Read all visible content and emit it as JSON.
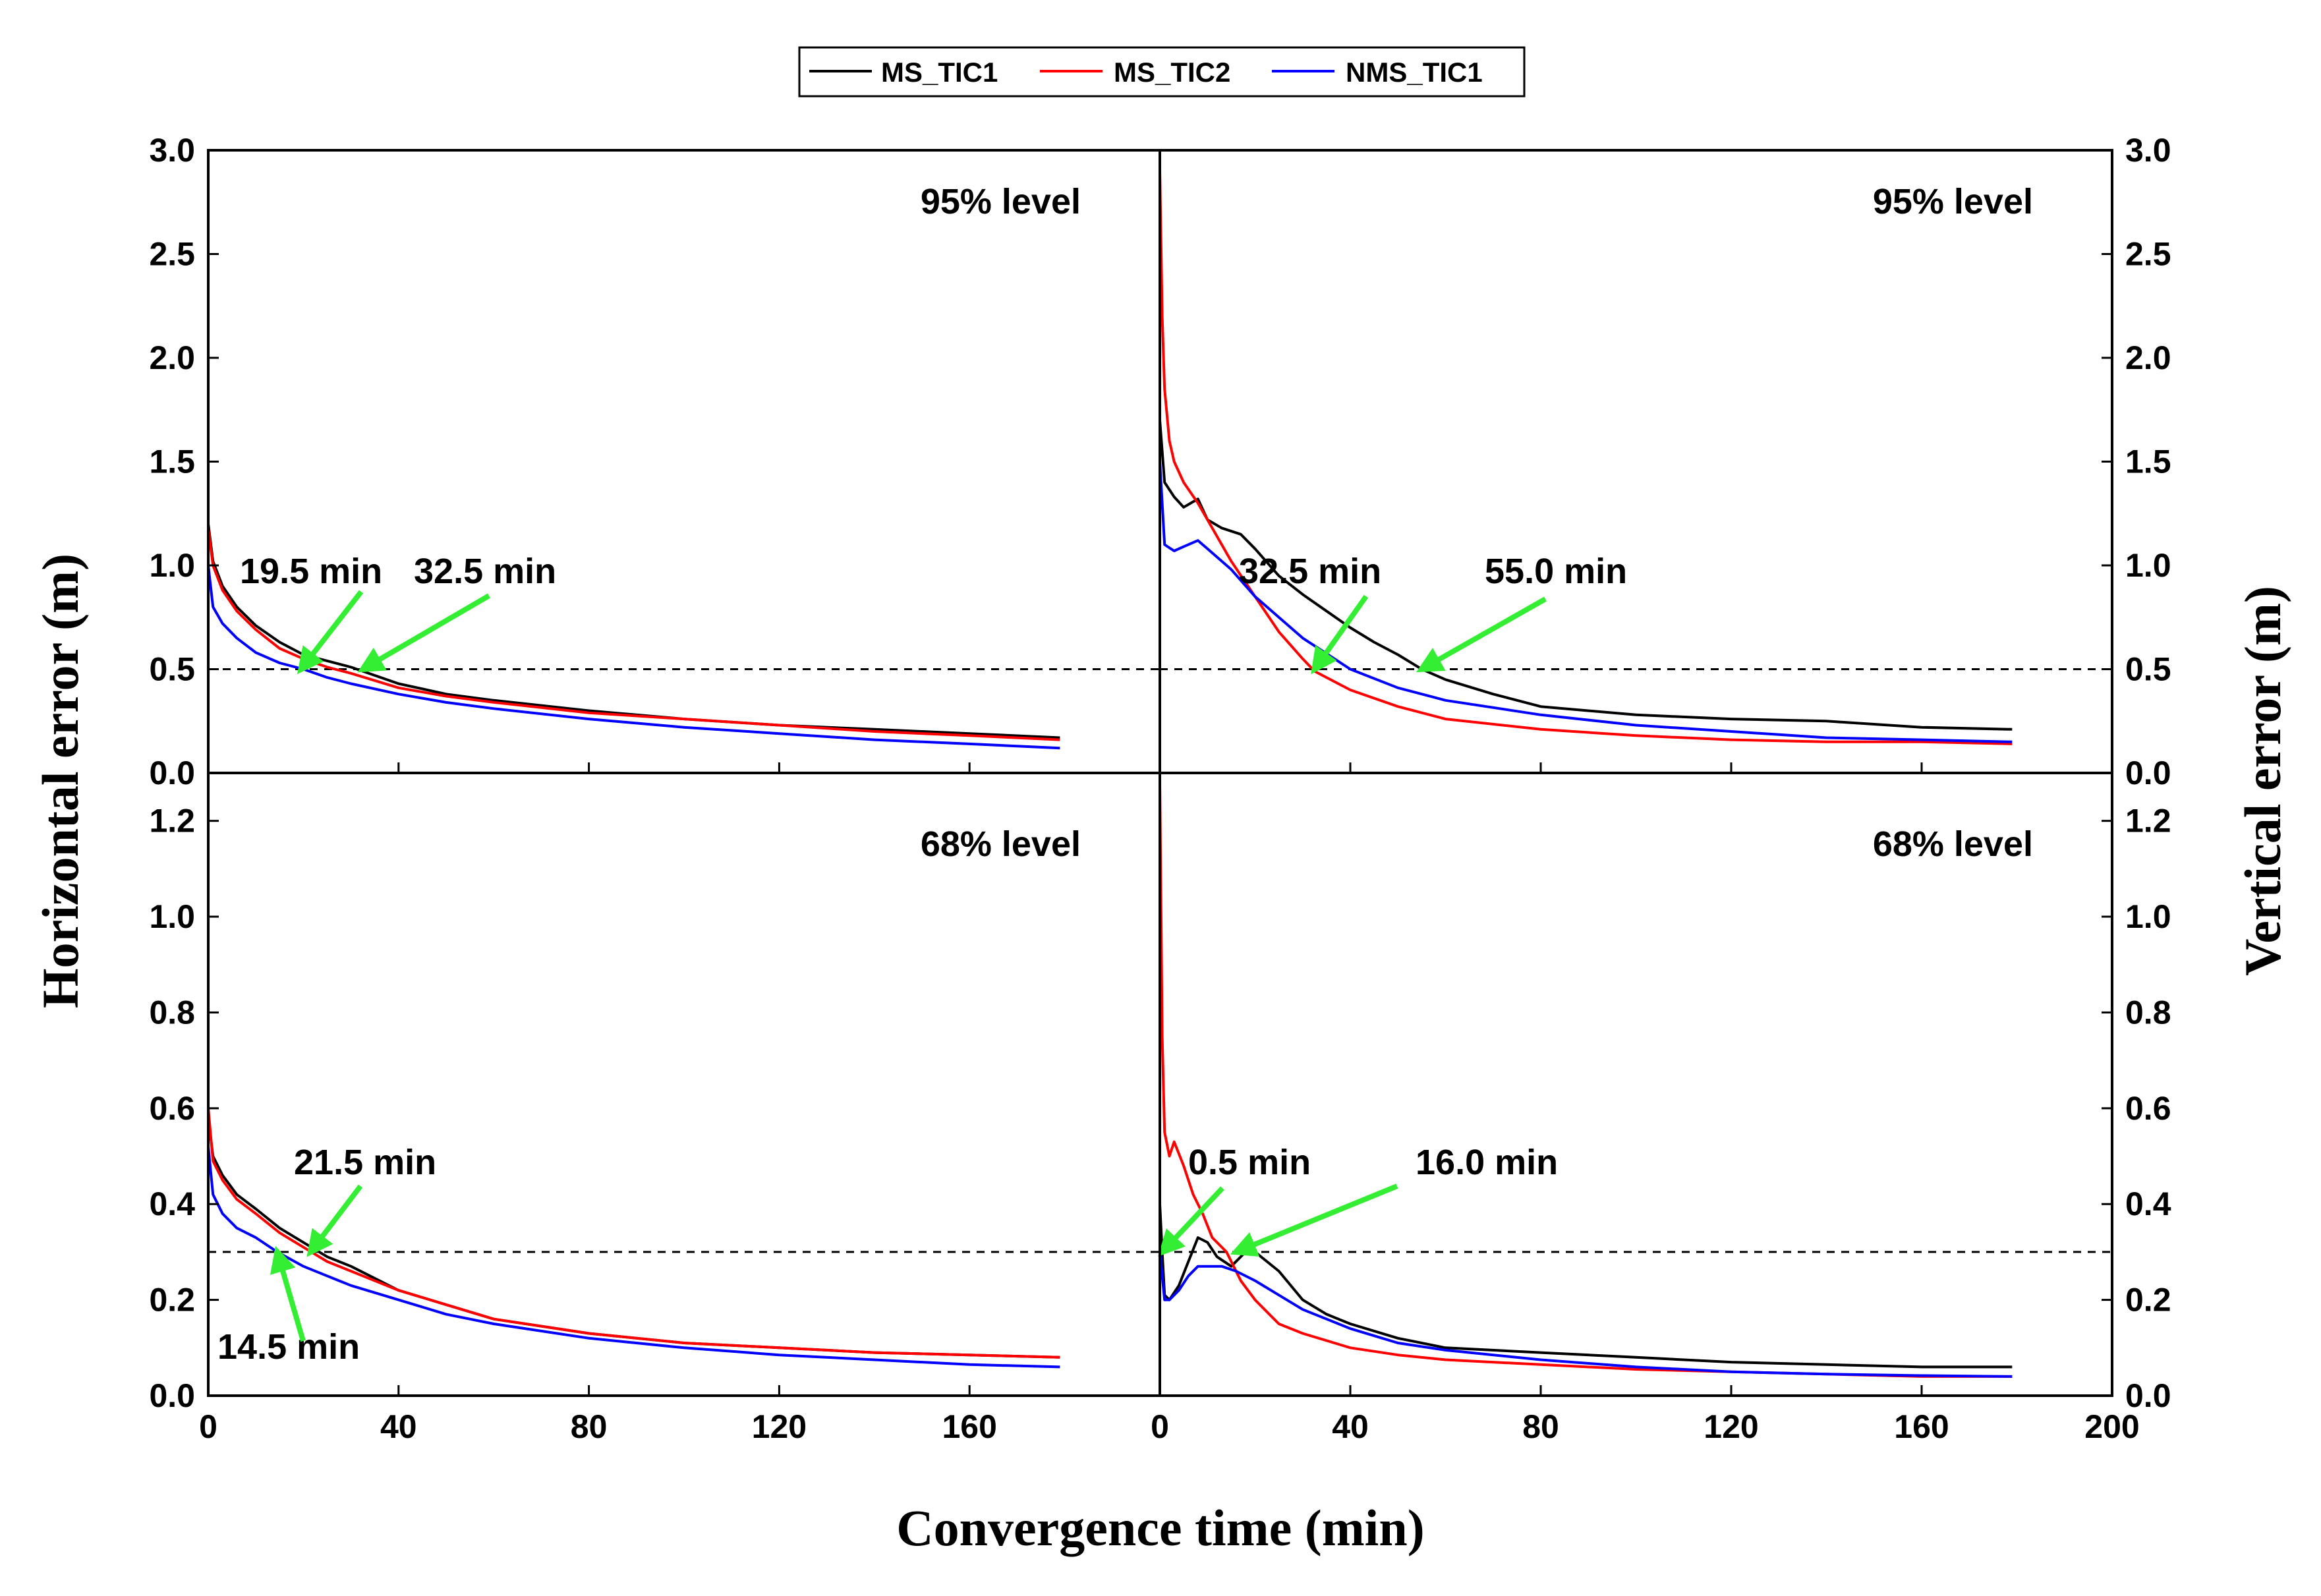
{
  "chart_data": {
    "type": "line",
    "legend": {
      "placement": "top-center",
      "entries": [
        {
          "name": "MS_TIC1",
          "color": "#000000"
        },
        {
          "name": "MS_TIC2",
          "color": "#ff0000"
        },
        {
          "name": "NMS_TIC1",
          "color": "#0000ff"
        }
      ]
    },
    "xlabel": "Convergence time (min)",
    "ylabel_left": "Horizontal error (m)",
    "ylabel_right": "Vertical error (m)",
    "xlim": [
      0,
      200
    ],
    "xticks": [
      "0",
      "40",
      "80",
      "120",
      "160",
      "200"
    ],
    "panels": [
      {
        "id": "horizontal-95",
        "label": "95%  level",
        "ylim": [
          0,
          3.0
        ],
        "yticks": [
          "0.0",
          "0.5",
          "1.0",
          "1.5",
          "2.0",
          "2.5",
          "3.0"
        ],
        "threshold": 0.5,
        "series": [
          {
            "name": "MS_TIC1",
            "x": [
              0,
              1,
              3,
              6,
              10,
              15,
              20,
              25,
              30,
              40,
              50,
              60,
              80,
              100,
              120,
              140,
              160,
              179
            ],
            "values": [
              1.2,
              1.02,
              0.9,
              0.8,
              0.71,
              0.63,
              0.57,
              0.54,
              0.51,
              0.43,
              0.38,
              0.35,
              0.3,
              0.26,
              0.23,
              0.21,
              0.19,
              0.17
            ]
          },
          {
            "name": "MS_TIC2",
            "x": [
              0,
              1,
              3,
              6,
              10,
              15,
              20,
              25,
              30,
              40,
              50,
              60,
              80,
              100,
              120,
              140,
              160,
              179
            ],
            "values": [
              1.18,
              1.0,
              0.88,
              0.78,
              0.69,
              0.6,
              0.55,
              0.51,
              0.48,
              0.41,
              0.37,
              0.34,
              0.29,
              0.26,
              0.23,
              0.2,
              0.18,
              0.16
            ]
          },
          {
            "name": "NMS_TIC1",
            "x": [
              0,
              1,
              3,
              6,
              10,
              15,
              20,
              25,
              30,
              40,
              50,
              60,
              80,
              100,
              120,
              140,
              160,
              179
            ],
            "values": [
              1.0,
              0.8,
              0.72,
              0.65,
              0.58,
              0.53,
              0.5,
              0.46,
              0.43,
              0.38,
              0.34,
              0.31,
              0.26,
              0.22,
              0.19,
              0.16,
              0.14,
              0.12
            ]
          }
        ],
        "annotations": [
          {
            "text": "19.5  min",
            "x": 19.5,
            "y": 0.5
          },
          {
            "text": "32.5  min",
            "x": 32.5,
            "y": 0.5
          }
        ]
      },
      {
        "id": "vertical-95",
        "label": "95%  level",
        "ylim": [
          0,
          3.0
        ],
        "yticks": [
          "0.0",
          "0.5",
          "1.0",
          "1.5",
          "2.0",
          "2.5",
          "3.0"
        ],
        "threshold": 0.5,
        "series": [
          {
            "name": "MS_TIC1",
            "x": [
              0,
              1,
              3,
              5,
              8,
              10,
              13,
              17,
              20,
              25,
              30,
              35,
              40,
              45,
              50,
              55,
              60,
              70,
              80,
              100,
              120,
              140,
              160,
              179
            ],
            "values": [
              1.7,
              1.4,
              1.33,
              1.28,
              1.32,
              1.22,
              1.18,
              1.15,
              1.08,
              0.95,
              0.86,
              0.78,
              0.7,
              0.63,
              0.57,
              0.5,
              0.45,
              0.38,
              0.32,
              0.28,
              0.26,
              0.25,
              0.22,
              0.21
            ]
          },
          {
            "name": "MS_TIC2",
            "x": [
              0,
              0.5,
              1,
              2,
              3,
              5,
              8,
              10,
              15,
              20,
              25,
              30,
              32.5,
              40,
              50,
              60,
              80,
              100,
              120,
              140,
              160,
              179
            ],
            "values": [
              2.9,
              2.2,
              1.85,
              1.6,
              1.5,
              1.4,
              1.3,
              1.22,
              1.02,
              0.85,
              0.68,
              0.55,
              0.49,
              0.4,
              0.32,
              0.26,
              0.21,
              0.18,
              0.16,
              0.15,
              0.15,
              0.14
            ]
          },
          {
            "name": "NMS_TIC1",
            "x": [
              0,
              1,
              3,
              5,
              8,
              10,
              15,
              20,
              25,
              30,
              40,
              50,
              60,
              80,
              100,
              120,
              140,
              160,
              179
            ],
            "values": [
              1.5,
              1.1,
              1.07,
              1.09,
              1.12,
              1.08,
              0.98,
              0.85,
              0.75,
              0.65,
              0.5,
              0.41,
              0.35,
              0.28,
              0.23,
              0.2,
              0.17,
              0.16,
              0.15
            ]
          }
        ],
        "annotations": [
          {
            "text": "32.5  min",
            "x": 32.5,
            "y": 0.5
          },
          {
            "text": "55.0  min",
            "x": 55.0,
            "y": 0.5
          }
        ]
      },
      {
        "id": "horizontal-68",
        "label": "68%  level",
        "ylim": [
          0,
          1.3
        ],
        "yticks": [
          "0.0",
          "0.2",
          "0.4",
          "0.6",
          "0.8",
          "1.0",
          "1.2"
        ],
        "threshold": 0.3,
        "series": [
          {
            "name": "MS_TIC1",
            "x": [
              0,
              1,
              3,
              6,
              10,
              15,
              20,
              25,
              30,
              40,
              50,
              60,
              80,
              100,
              120,
              140,
              160,
              179
            ],
            "values": [
              0.58,
              0.5,
              0.46,
              0.42,
              0.39,
              0.35,
              0.32,
              0.29,
              0.27,
              0.22,
              0.19,
              0.16,
              0.13,
              0.11,
              0.1,
              0.09,
              0.085,
              0.08
            ]
          },
          {
            "name": "MS_TIC2",
            "x": [
              0,
              1,
              3,
              6,
              10,
              15,
              20,
              25,
              30,
              40,
              50,
              60,
              80,
              100,
              120,
              140,
              160,
              179
            ],
            "values": [
              0.6,
              0.49,
              0.45,
              0.41,
              0.38,
              0.34,
              0.31,
              0.28,
              0.26,
              0.22,
              0.19,
              0.16,
              0.13,
              0.11,
              0.1,
              0.09,
              0.085,
              0.08
            ]
          },
          {
            "name": "NMS_TIC1",
            "x": [
              0,
              1,
              3,
              6,
              10,
              14.5,
              20,
              25,
              30,
              40,
              50,
              60,
              80,
              100,
              120,
              140,
              160,
              179
            ],
            "values": [
              0.52,
              0.42,
              0.38,
              0.35,
              0.33,
              0.3,
              0.27,
              0.25,
              0.23,
              0.2,
              0.17,
              0.15,
              0.12,
              0.1,
              0.085,
              0.075,
              0.065,
              0.06
            ]
          }
        ],
        "annotations": [
          {
            "text": "21.5  min",
            "x": 21.5,
            "y": 0.3
          },
          {
            "text": "14.5  min",
            "x": 14.5,
            "y": 0.3
          }
        ]
      },
      {
        "id": "vertical-68",
        "label": "68%  level",
        "ylim": [
          0,
          1.3
        ],
        "yticks": [
          "0.0",
          "0.2",
          "0.4",
          "0.6",
          "0.8",
          "1.0",
          "1.2"
        ],
        "threshold": 0.3,
        "series": [
          {
            "name": "MS_TIC1",
            "x": [
              0,
              0.5,
              1,
              2,
              4,
              6,
              8,
              10,
              12,
              15,
              18,
              20,
              25,
              30,
              35,
              40,
              50,
              60,
              80,
              100,
              120,
              140,
              160,
              179
            ],
            "values": [
              0.4,
              0.3,
              0.21,
              0.2,
              0.23,
              0.28,
              0.33,
              0.32,
              0.29,
              0.27,
              0.3,
              0.3,
              0.26,
              0.2,
              0.17,
              0.15,
              0.12,
              0.1,
              0.09,
              0.08,
              0.07,
              0.065,
              0.06,
              0.06
            ]
          },
          {
            "name": "MS_TIC2",
            "x": [
              0,
              0.5,
              1,
              2,
              3,
              5,
              7,
              9,
              11,
              14,
              17,
              20,
              25,
              30,
              40,
              50,
              60,
              80,
              100,
              120,
              140,
              160,
              179
            ],
            "values": [
              1.28,
              0.75,
              0.55,
              0.5,
              0.53,
              0.48,
              0.42,
              0.38,
              0.33,
              0.3,
              0.24,
              0.2,
              0.15,
              0.13,
              0.1,
              0.085,
              0.075,
              0.065,
              0.055,
              0.05,
              0.045,
              0.04,
              0.04
            ]
          },
          {
            "name": "NMS_TIC1",
            "x": [
              0,
              0.5,
              1,
              2,
              4,
              6,
              8,
              10,
              13,
              16,
              20,
              25,
              30,
              40,
              50,
              60,
              80,
              100,
              120,
              140,
              160,
              179
            ],
            "values": [
              0.3,
              0.25,
              0.2,
              0.2,
              0.22,
              0.25,
              0.27,
              0.27,
              0.27,
              0.26,
              0.24,
              0.21,
              0.18,
              0.14,
              0.11,
              0.095,
              0.075,
              0.06,
              0.05,
              0.045,
              0.042,
              0.04
            ]
          }
        ],
        "annotations": [
          {
            "text": "0.5  min",
            "x": 0.5,
            "y": 0.3
          },
          {
            "text": "16.0  min",
            "x": 16.0,
            "y": 0.3
          }
        ]
      }
    ]
  }
}
